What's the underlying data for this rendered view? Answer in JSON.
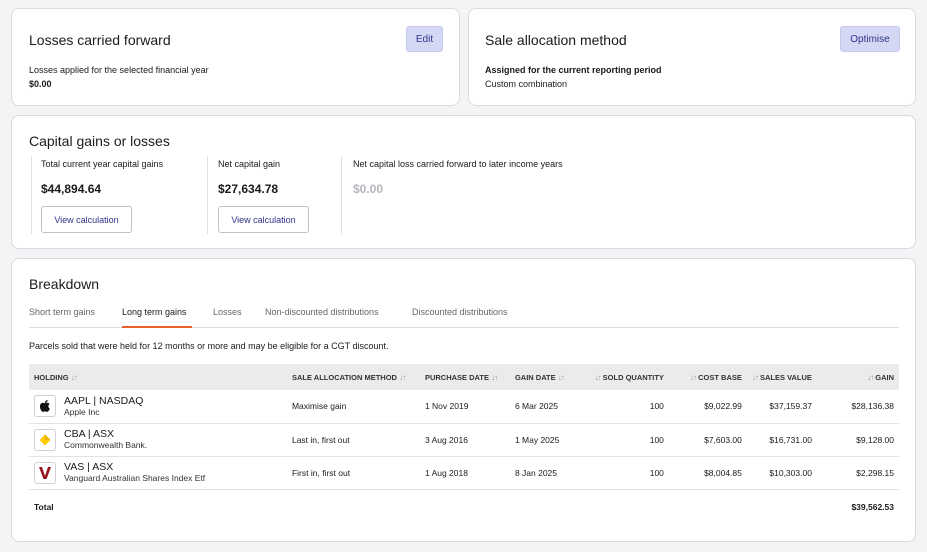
{
  "losses": {
    "title": "Losses carried forward",
    "edit_label": "Edit",
    "subtitle": "Losses applied for the selected financial year",
    "value": "$0.00"
  },
  "sale_method": {
    "title": "Sale allocation method",
    "optimise_label": "Optimise",
    "subtitle": "Assigned for the current reporting period",
    "value": "Custom combination"
  },
  "capital": {
    "title": "Capital gains or losses",
    "total_label": "Total current year capital gains",
    "total_value": "$44,894.64",
    "net_label": "Net capital gain",
    "net_value": "$27,634.78",
    "carry_label": "Net capital loss carried forward to later income years",
    "carry_value": "$0.00",
    "view_calc": "View calculation"
  },
  "breakdown": {
    "title": "Breakdown",
    "tabs": [
      "Short term gains",
      "Long term gains",
      "Losses",
      "Non-discounted distributions",
      "Discounted distributions"
    ],
    "active_tab": 1,
    "description": "Parcels sold that were held for 12 months or more and may be eligible for a CGT discount.",
    "columns": {
      "holding": "HOLDING",
      "method": "SALE ALLOCATION METHOD",
      "purchase": "PURCHASE DATE",
      "gain_date": "GAIN DATE",
      "qty": "SOLD QUANTITY",
      "cost": "COST BASE",
      "sales": "SALES VALUE",
      "gain": "GAIN"
    },
    "rows": [
      {
        "ticker": "AAPL | NASDAQ",
        "name": "Apple Inc",
        "logo": "apple-logo-icon",
        "method": "Maximise gain",
        "purchase": "1 Nov 2019",
        "gain_date": "6 Mar 2025",
        "qty": "100",
        "cost": "$9,022.99",
        "sales": "$37,159.37",
        "gain": "$28,136.38"
      },
      {
        "ticker": "CBA | ASX",
        "name": "Commonwealth Bank.",
        "logo": "cba-logo-icon",
        "method": "Last in, first out",
        "purchase": "3 Aug 2016",
        "gain_date": "1 May 2025",
        "qty": "100",
        "cost": "$7,603.00",
        "sales": "$16,731.00",
        "gain": "$9,128.00"
      },
      {
        "ticker": "VAS | ASX",
        "name": "Vanguard Australian Shares Index Etf",
        "logo": "vanguard-logo-icon",
        "method": "First in, first out",
        "purchase": "1 Aug 2018",
        "gain_date": "8 Jan 2025",
        "qty": "100",
        "cost": "$8,004.85",
        "sales": "$10,303.00",
        "gain": "$2,298.15"
      }
    ],
    "total_label": "Total",
    "total_value": "$39,562.53"
  },
  "colors": {
    "accent_tab": "#e8612c",
    "soft_button": "#d5d8f4",
    "link": "#2c3488"
  }
}
